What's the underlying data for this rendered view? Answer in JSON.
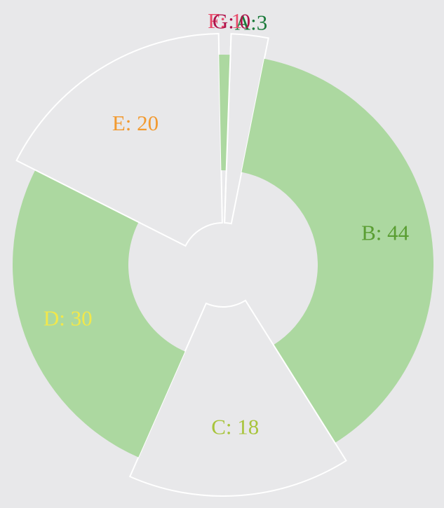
{
  "chart_data": {
    "type": "donut",
    "categories": [
      "A",
      "B",
      "C",
      "D",
      "E",
      "F",
      "G"
    ],
    "values": [
      3,
      44,
      18,
      30,
      20,
      1,
      0
    ],
    "labels": [
      "A:3",
      "B: 44",
      "C: 18",
      "D: 30",
      "E: 20",
      "F: 1",
      "G: 0"
    ],
    "label_colors": [
      "#1a7a3a",
      "#5a9e32",
      "#a8c43c",
      "#f2e84a",
      "#f29a30",
      "#e84a6a",
      "#b0124a"
    ],
    "fill_color": "#acd8a0",
    "outline_color": "#ffffff"
  }
}
